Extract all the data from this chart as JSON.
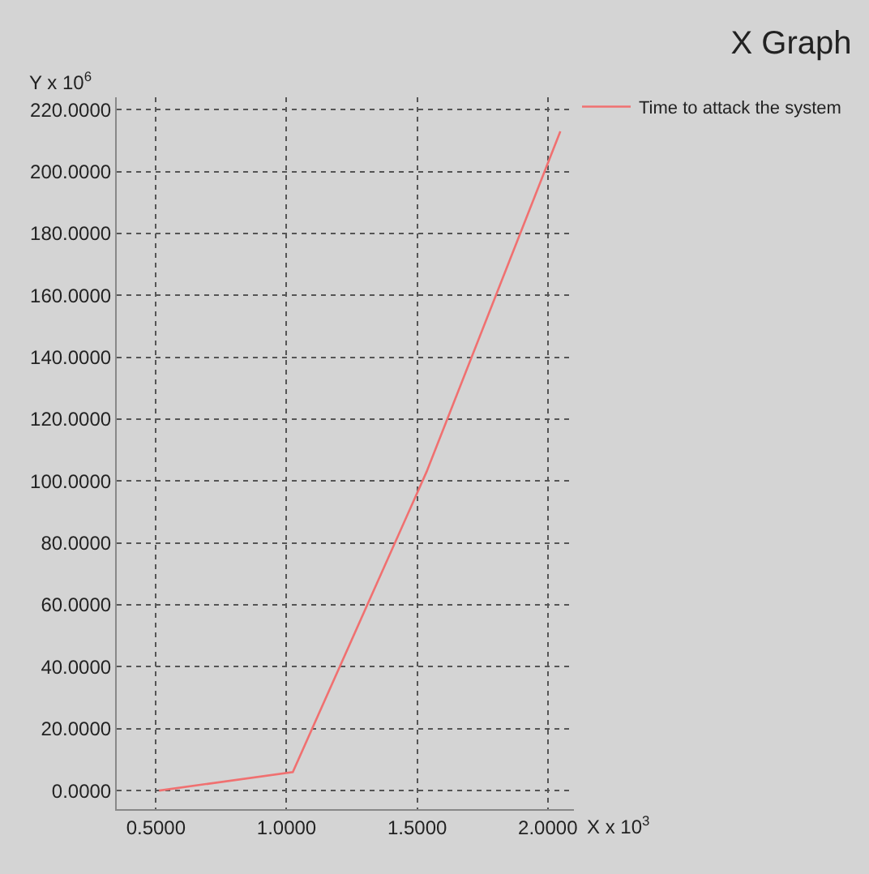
{
  "chart_data": {
    "type": "line",
    "title": "X Graph",
    "xlabel": "X x 10$^{3}$",
    "ylabel": "Y x 10$^{6}$",
    "x": [
      0.512,
      1.024,
      1.536,
      2.048
    ],
    "series": [
      {
        "name": "Time to attack the system",
        "color": "#f07070",
        "values": [
          0,
          6,
          103,
          213
        ]
      }
    ],
    "xlim": [
      0.35,
      2.1
    ],
    "xticks": [
      {
        "value": 0.5,
        "label": "0.5000"
      },
      {
        "value": 1.0,
        "label": "1.0000"
      },
      {
        "value": 1.5,
        "label": "1.5000"
      },
      {
        "value": 2.0,
        "label": "2.0000"
      }
    ],
    "ylim": [
      -6,
      224
    ],
    "yticks": [
      {
        "value": 0,
        "label": "0.0000"
      },
      {
        "value": 20,
        "label": "20.0000"
      },
      {
        "value": 40,
        "label": "40.0000"
      },
      {
        "value": 60,
        "label": "60.0000"
      },
      {
        "value": 80,
        "label": "80.0000"
      },
      {
        "value": 100,
        "label": "100.0000"
      },
      {
        "value": 120,
        "label": "120.0000"
      },
      {
        "value": 140,
        "label": "140.0000"
      },
      {
        "value": 160,
        "label": "160.0000"
      },
      {
        "value": 180,
        "label": "180.0000"
      },
      {
        "value": 200,
        "label": "200.0000"
      },
      {
        "value": 220,
        "label": "220.0000"
      }
    ],
    "grid": true,
    "legend": "top right",
    "marker": "none",
    "line_style": "solid"
  }
}
